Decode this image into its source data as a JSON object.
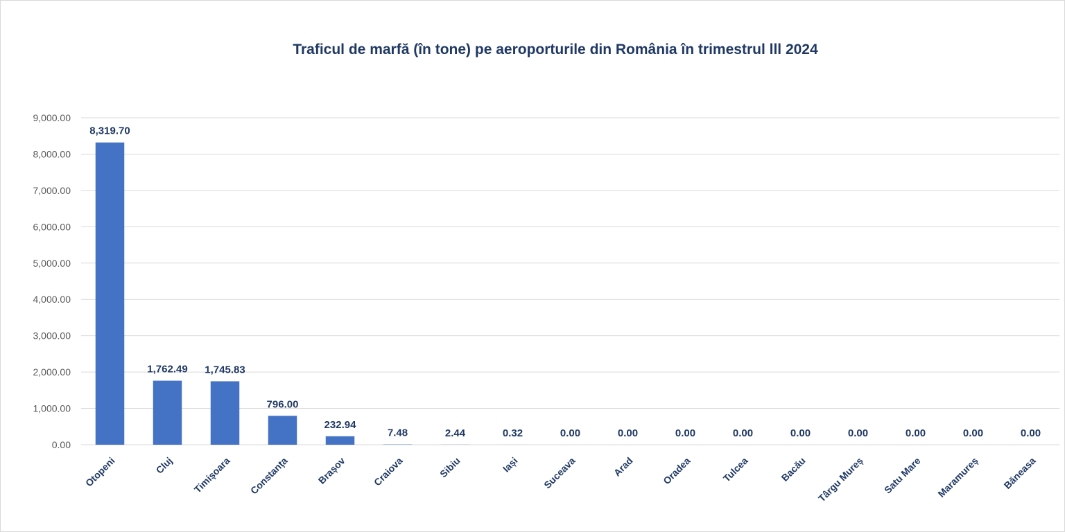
{
  "chart_data": {
    "type": "bar",
    "title": "Traficul de marfă (în tone) pe aeroporturile din România în trimestrul lll 2024",
    "xlabel": "",
    "ylabel": "",
    "ylim": [
      0,
      9000
    ],
    "y_ticks": [
      "0.00",
      "1,000.00",
      "2,000.00",
      "3,000.00",
      "4,000.00",
      "5,000.00",
      "6,000.00",
      "7,000.00",
      "8,000.00",
      "9,000.00"
    ],
    "grid": true,
    "legend": "none",
    "categories": [
      "Otopeni",
      "Cluj",
      "Timișoara",
      "Constanța",
      "Brașov",
      "Craiova",
      "Sibiu",
      "Iași",
      "Suceava",
      "Arad",
      "Oradea",
      "Tulcea",
      "Bacău",
      "Târgu Mureș",
      "Satu Mare",
      "Maramureș",
      "Băneasa"
    ],
    "values": [
      8319.7,
      1762.49,
      1745.83,
      796.0,
      232.94,
      7.48,
      2.44,
      0.32,
      0.0,
      0.0,
      0.0,
      0.0,
      0.0,
      0.0,
      0.0,
      0.0,
      0.0
    ],
    "data_labels": [
      "8,319.70",
      "1,762.49",
      "1,745.83",
      "796.00",
      "232.94",
      "7.48",
      "2.44",
      "0.32",
      "0.00",
      "0.00",
      "0.00",
      "0.00",
      "0.00",
      "0.00",
      "0.00",
      "0.00",
      "0.00"
    ],
    "colors": {
      "bar": "#4472c4",
      "label": "#1f3864",
      "title": "#1f3864",
      "tick": "#595959",
      "grid": "#d9d9d9"
    }
  }
}
